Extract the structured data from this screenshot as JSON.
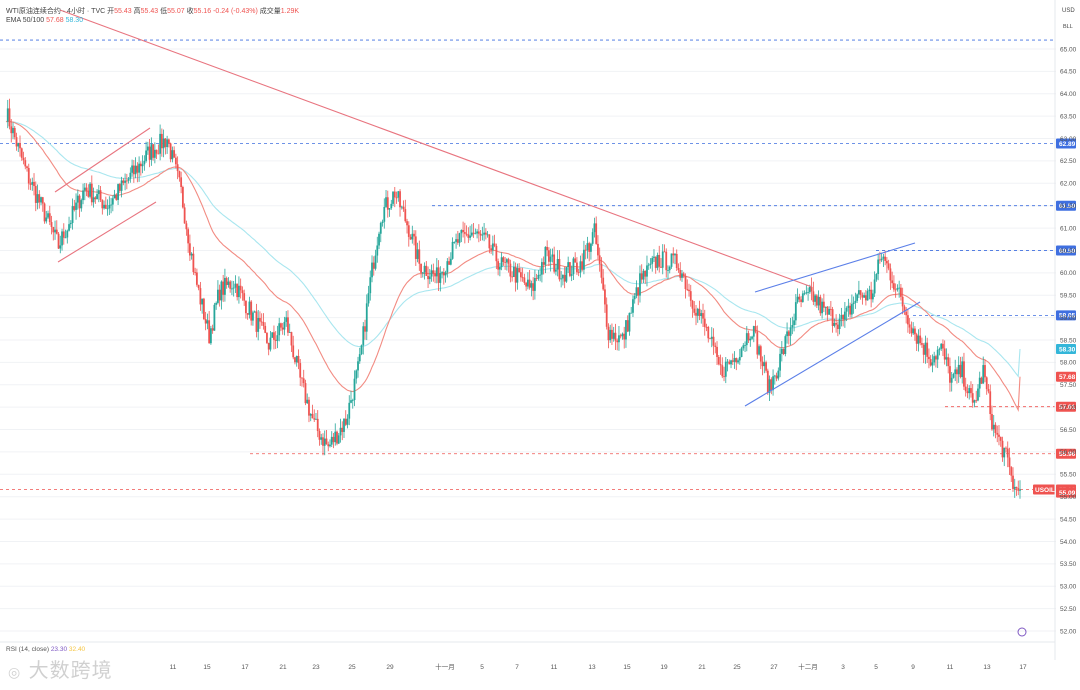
{
  "header": {
    "symbol": "WTI原油连续合约 · 4小时 · TVC",
    "open_label": "开",
    "open": "55.43",
    "high_label": "高",
    "high": "55.43",
    "low_label": "低",
    "low": "55.07",
    "close_label": "收",
    "close": "55.16",
    "change": "-0.24 (-0.43%)",
    "volume_label": "成交量",
    "volume": "1.29K",
    "ema_label": "EMA 50/100",
    "ema50": "57.68",
    "ema100": "58.30"
  },
  "currency": "USD",
  "scale_mode": "BLL",
  "rsi": {
    "label": "RSI (14, close)",
    "v1": "23.30",
    "v2": "32.40"
  },
  "watermark": "大数跨境",
  "colors": {
    "up": "#26a69a",
    "down": "#ef5350",
    "ema50": "#f28b82",
    "ema100": "#a8e6ef",
    "trend_red": "#e8747f",
    "trend_blue": "#5b7fe8",
    "support": "#ef5350",
    "resistance": "#3f6fe0"
  },
  "chart_data": {
    "type": "candlestick",
    "ylim": [
      51.6,
      65.7
    ],
    "y_ticks": [
      "65.00",
      "64.50",
      "64.00",
      "63.50",
      "63.00",
      "62.50",
      "62.00",
      "61.50",
      "61.00",
      "60.50",
      "60.00",
      "59.50",
      "59.00",
      "58.50",
      "58.00",
      "57.50",
      "57.00",
      "56.50",
      "56.00",
      "55.50",
      "55.00",
      "54.50",
      "54.00",
      "53.50",
      "53.00",
      "52.50",
      "52.00"
    ],
    "x_ticks": [
      "11",
      "15",
      "17",
      "21",
      "23",
      "25",
      "29",
      "十一月",
      "5",
      "7",
      "11",
      "13",
      "15",
      "19",
      "21",
      "25",
      "27",
      "十二月",
      "3",
      "5",
      "9",
      "11",
      "13",
      "17"
    ],
    "price_levels": [
      {
        "label": "62.89",
        "value": 62.89,
        "color": "#3f6fe0"
      },
      {
        "label": "61.50",
        "value": 61.5,
        "color": "#3f6fe0"
      },
      {
        "label": "60.50",
        "value": 60.5,
        "color": "#3f6fe0"
      },
      {
        "label": "59.05",
        "value": 59.05,
        "color": "#3f6fe0"
      },
      {
        "label": "58.30",
        "value": 58.3,
        "color": "#33b6d9"
      },
      {
        "label": "57.68",
        "value": 57.68,
        "color": "#ef5350"
      },
      {
        "label": "57.01",
        "value": 57.01,
        "color": "#ef5350"
      },
      {
        "label": "55.96",
        "value": 55.96,
        "color": "#ef5350"
      },
      {
        "label": "55.16",
        "value": 55.16,
        "color": "#ef5350"
      },
      {
        "label": "55.09",
        "value": 55.09,
        "color": "#ef5350"
      }
    ],
    "last_price_tag": "USOIL",
    "anchors": [
      [
        0,
        63.6
      ],
      [
        12,
        62.2
      ],
      [
        20,
        61.5
      ],
      [
        30,
        60.6
      ],
      [
        45,
        61.9
      ],
      [
        58,
        61.5
      ],
      [
        70,
        62.1
      ],
      [
        82,
        62.7
      ],
      [
        92,
        63.0
      ],
      [
        100,
        61.8
      ],
      [
        108,
        59.9
      ],
      [
        116,
        58.6
      ],
      [
        122,
        59.6
      ],
      [
        130,
        59.8
      ],
      [
        140,
        59.1
      ],
      [
        150,
        58.4
      ],
      [
        160,
        58.9
      ],
      [
        168,
        57.6
      ],
      [
        176,
        56.6
      ],
      [
        184,
        56.1
      ],
      [
        194,
        56.7
      ],
      [
        202,
        58.0
      ],
      [
        208,
        59.8
      ],
      [
        214,
        61.3
      ],
      [
        222,
        61.8
      ],
      [
        230,
        61.0
      ],
      [
        236,
        60.2
      ],
      [
        246,
        59.9
      ],
      [
        258,
        60.7
      ],
      [
        266,
        60.9
      ],
      [
        274,
        60.7
      ],
      [
        282,
        60.2
      ],
      [
        290,
        60.0
      ],
      [
        300,
        59.6
      ],
      [
        308,
        60.4
      ],
      [
        318,
        60.0
      ],
      [
        328,
        60.2
      ],
      [
        336,
        60.9
      ],
      [
        344,
        58.7
      ],
      [
        352,
        58.5
      ],
      [
        362,
        59.8
      ],
      [
        372,
        60.3
      ],
      [
        384,
        60.2
      ],
      [
        392,
        59.4
      ],
      [
        400,
        58.7
      ],
      [
        408,
        57.8
      ],
      [
        416,
        58.1
      ],
      [
        426,
        58.8
      ],
      [
        436,
        57.4
      ],
      [
        444,
        58.3
      ],
      [
        452,
        59.3
      ],
      [
        460,
        59.5
      ],
      [
        468,
        59.1
      ],
      [
        478,
        58.9
      ],
      [
        486,
        59.5
      ],
      [
        494,
        59.5
      ],
      [
        500,
        60.4
      ],
      [
        506,
        59.9
      ],
      [
        514,
        59.1
      ],
      [
        520,
        58.6
      ],
      [
        528,
        58.1
      ],
      [
        534,
        58.3
      ],
      [
        540,
        57.6
      ],
      [
        546,
        57.8
      ],
      [
        552,
        57.0
      ],
      [
        558,
        57.8
      ],
      [
        564,
        56.5
      ],
      [
        570,
        56.0
      ],
      [
        576,
        55.16
      ]
    ]
  }
}
